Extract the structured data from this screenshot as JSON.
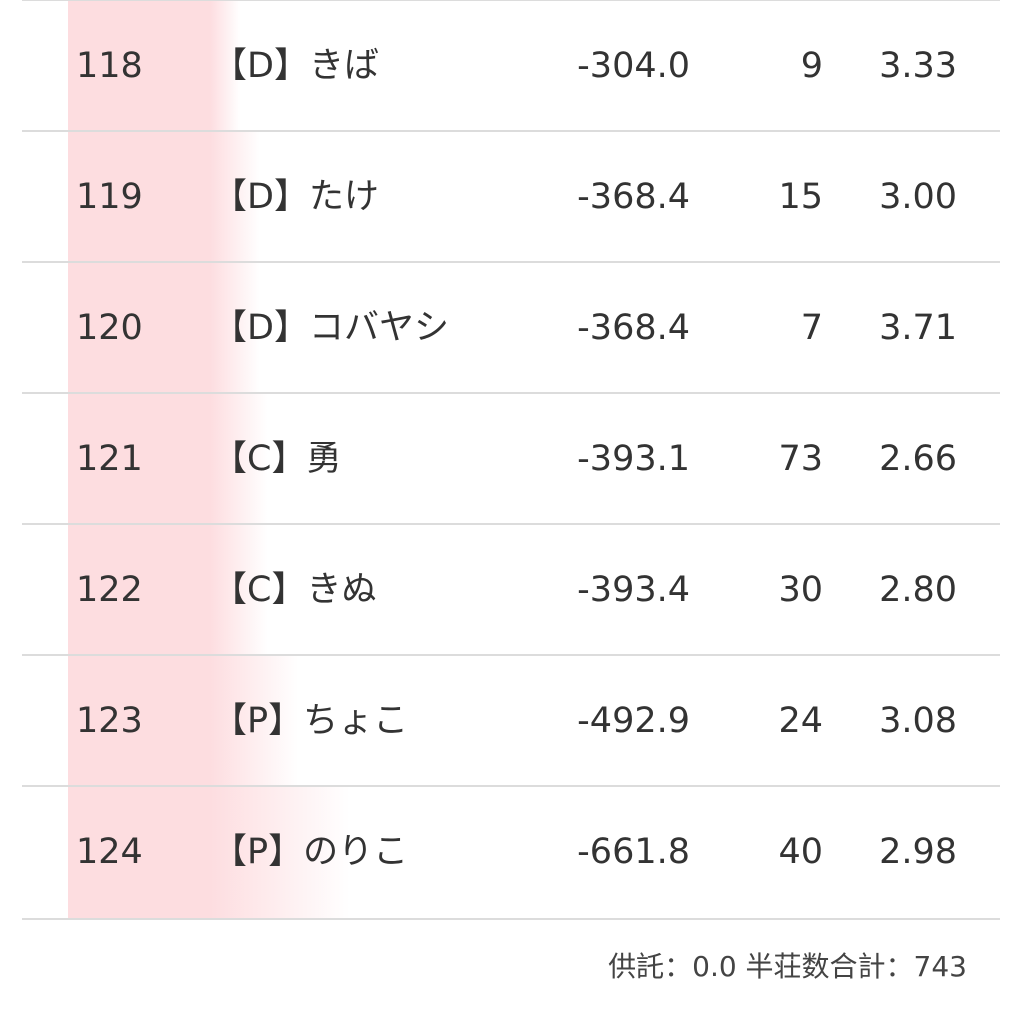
{
  "bar_color": "#fddde0",
  "rows": [
    {
      "rank": "118",
      "name": "【D】きば",
      "score": "-304.0",
      "count": "9",
      "avg": "3.33"
    },
    {
      "rank": "119",
      "name": "【D】たけ",
      "score": "-368.4",
      "count": "15",
      "avg": "3.00"
    },
    {
      "rank": "120",
      "name": "【D】コバヤシ",
      "score": "-368.4",
      "count": "7",
      "avg": "3.71"
    },
    {
      "rank": "121",
      "name": "【C】勇",
      "score": "-393.1",
      "count": "73",
      "avg": "2.66"
    },
    {
      "rank": "122",
      "name": "【C】きぬ",
      "score": "-393.4",
      "count": "30",
      "avg": "2.80"
    },
    {
      "rank": "123",
      "name": "【P】ちょこ",
      "score": "-492.9",
      "count": "24",
      "avg": "3.08"
    },
    {
      "rank": "124",
      "name": "【P】のりこ",
      "score": "-661.8",
      "count": "40",
      "avg": "2.98"
    }
  ],
  "footer": "供託：0.0 半荘数合計：743"
}
